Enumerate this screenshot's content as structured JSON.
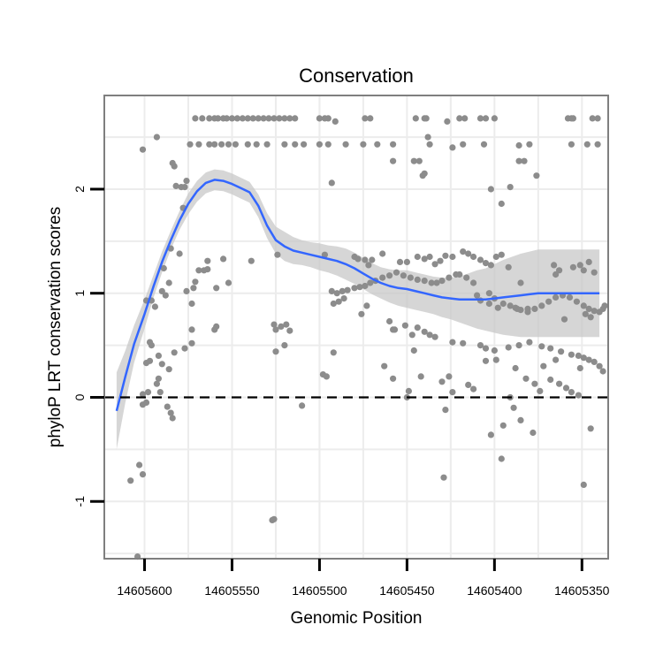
{
  "chart_data": {
    "type": "scatter",
    "title": "Conservation",
    "xlabel": "Genomic Position",
    "ylabel": "phyloP LRT conservation scores",
    "x_reversed": true,
    "xlim": [
      14605623,
      14605335
    ],
    "ylim": [
      -1.55,
      2.9
    ],
    "x_ticks": [
      14605600,
      14605550,
      14605500,
      14605450,
      14605400,
      14605350
    ],
    "x_tick_labels": [
      "14605600",
      "14605550",
      "14605500",
      "14605450",
      "14605400",
      "14605350"
    ],
    "y_ticks": [
      -1,
      0,
      1,
      2
    ],
    "y_tick_labels": [
      "-1",
      "0",
      "1",
      "2"
    ],
    "grid": true,
    "reference_line": {
      "y": 0,
      "style": "dashed"
    },
    "colors": {
      "points": "#8c8c8c",
      "smooth_line": "#3366ff",
      "confidence_band": "#c8c8c8",
      "panel_border": "#7f7f7f",
      "grid": "#ececec"
    },
    "points": [
      [
        14605571,
        2.68
      ],
      [
        14605567,
        2.68
      ],
      [
        14605563,
        2.68
      ],
      [
        14605560,
        2.68
      ],
      [
        14605558,
        2.68
      ],
      [
        14605555,
        2.68
      ],
      [
        14605553,
        2.68
      ],
      [
        14605550,
        2.68
      ],
      [
        14605547,
        2.68
      ],
      [
        14605544,
        2.68
      ],
      [
        14605541,
        2.68
      ],
      [
        14605538,
        2.68
      ],
      [
        14605535,
        2.68
      ],
      [
        14605532,
        2.68
      ],
      [
        14605529,
        2.68
      ],
      [
        14605526,
        2.68
      ],
      [
        14605523,
        2.68
      ],
      [
        14605520,
        2.68
      ],
      [
        14605517,
        2.68
      ],
      [
        14605514,
        2.68
      ],
      [
        14605500,
        2.68
      ],
      [
        14605497,
        2.68
      ],
      [
        14605495,
        2.68
      ],
      [
        14605491,
        2.65
      ],
      [
        14605474,
        2.68
      ],
      [
        14605471,
        2.68
      ],
      [
        14605445,
        2.68
      ],
      [
        14605440,
        2.68
      ],
      [
        14605439,
        2.68
      ],
      [
        14605427,
        2.65
      ],
      [
        14605420,
        2.68
      ],
      [
        14605417,
        2.68
      ],
      [
        14605408,
        2.68
      ],
      [
        14605405,
        2.68
      ],
      [
        14605400,
        2.68
      ],
      [
        14605358,
        2.68
      ],
      [
        14605356,
        2.68
      ],
      [
        14605355,
        2.68
      ],
      [
        14605344,
        2.68
      ],
      [
        14605341,
        2.68
      ],
      [
        14605574,
        2.43
      ],
      [
        14605569,
        2.43
      ],
      [
        14605563,
        2.43
      ],
      [
        14605560,
        2.43
      ],
      [
        14605556,
        2.43
      ],
      [
        14605552,
        2.43
      ],
      [
        14605548,
        2.43
      ],
      [
        14605541,
        2.43
      ],
      [
        14605536,
        2.43
      ],
      [
        14605530,
        2.43
      ],
      [
        14605520,
        2.43
      ],
      [
        14605514,
        2.43
      ],
      [
        14605509,
        2.43
      ],
      [
        14605500,
        2.43
      ],
      [
        14605495,
        2.43
      ],
      [
        14605485,
        2.43
      ],
      [
        14605475,
        2.43
      ],
      [
        14605467,
        2.43
      ],
      [
        14605458,
        2.43
      ],
      [
        14605437,
        2.43
      ],
      [
        14605418,
        2.43
      ],
      [
        14605406,
        2.43
      ],
      [
        14605380,
        2.43
      ],
      [
        14605356,
        2.43
      ],
      [
        14605347,
        2.43
      ],
      [
        14605341,
        2.43
      ],
      [
        14605424,
        2.4
      ],
      [
        14605386,
        2.42
      ],
      [
        14605593,
        2.5
      ],
      [
        14605601,
        2.38
      ],
      [
        14605438,
        2.5
      ],
      [
        14605584,
        2.25
      ],
      [
        14605583,
        2.22
      ],
      [
        14605458,
        2.27
      ],
      [
        14605446,
        2.27
      ],
      [
        14605443,
        2.27
      ],
      [
        14605386,
        2.27
      ],
      [
        14605383,
        2.27
      ],
      [
        14605440,
        2.15
      ],
      [
        14605441,
        2.13
      ],
      [
        14605391,
        2.02
      ],
      [
        14605376,
        2.13
      ],
      [
        14605582,
        2.03
      ],
      [
        14605579,
        2.02
      ],
      [
        14605577,
        2.02
      ],
      [
        14605576,
        2.08
      ],
      [
        14605493,
        2.06
      ],
      [
        14605402,
        2.0
      ],
      [
        14605578,
        1.82
      ],
      [
        14605396,
        1.86
      ],
      [
        14605585,
        1.43
      ],
      [
        14605589,
        1.24
      ],
      [
        14605580,
        1.38
      ],
      [
        14605569,
        1.22
      ],
      [
        14605566,
        1.22
      ],
      [
        14605564,
        1.23
      ],
      [
        14605564,
        1.31
      ],
      [
        14605559,
        1.05
      ],
      [
        14605555,
        1.33
      ],
      [
        14605539,
        1.31
      ],
      [
        14605590,
        1.02
      ],
      [
        14605586,
        1.1
      ],
      [
        14605596,
        0.93
      ],
      [
        14605594,
        0.87
      ],
      [
        14605599,
        0.93
      ],
      [
        14605588,
        0.98
      ],
      [
        14605576,
        1.02
      ],
      [
        14605572,
        1.05
      ],
      [
        14605571,
        1.11
      ],
      [
        14605573,
        0.9
      ],
      [
        14605552,
        1.1
      ],
      [
        14605524,
        1.37
      ],
      [
        14605497,
        1.37
      ],
      [
        14605480,
        1.35
      ],
      [
        14605478,
        1.33
      ],
      [
        14605474,
        1.32
      ],
      [
        14605472,
        1.27
      ],
      [
        14605470,
        1.32
      ],
      [
        14605464,
        1.38
      ],
      [
        14605454,
        1.3
      ],
      [
        14605450,
        1.3
      ],
      [
        14605444,
        1.35
      ],
      [
        14605440,
        1.33
      ],
      [
        14605437,
        1.35
      ],
      [
        14605434,
        1.28
      ],
      [
        14605431,
        1.31
      ],
      [
        14605428,
        1.36
      ],
      [
        14605424,
        1.35
      ],
      [
        14605418,
        1.4
      ],
      [
        14605415,
        1.38
      ],
      [
        14605412,
        1.35
      ],
      [
        14605408,
        1.32
      ],
      [
        14605405,
        1.29
      ],
      [
        14605402,
        1.27
      ],
      [
        14605399,
        1.35
      ],
      [
        14605396,
        1.37
      ],
      [
        14605392,
        1.25
      ],
      [
        14605385,
        1.1
      ],
      [
        14605366,
        1.27
      ],
      [
        14605365,
        1.18
      ],
      [
        14605363,
        1.22
      ],
      [
        14605355,
        1.25
      ],
      [
        14605351,
        1.27
      ],
      [
        14605349,
        1.22
      ],
      [
        14605346,
        1.3
      ],
      [
        14605343,
        1.2
      ],
      [
        14605493,
        1.02
      ],
      [
        14605490,
        1.0
      ],
      [
        14605487,
        1.02
      ],
      [
        14605484,
        1.03
      ],
      [
        14605480,
        1.05
      ],
      [
        14605477,
        1.06
      ],
      [
        14605474,
        1.07
      ],
      [
        14605471,
        1.1
      ],
      [
        14605468,
        1.12
      ],
      [
        14605464,
        1.15
      ],
      [
        14605460,
        1.17
      ],
      [
        14605456,
        1.2
      ],
      [
        14605452,
        1.17
      ],
      [
        14605448,
        1.15
      ],
      [
        14605444,
        1.13
      ],
      [
        14605440,
        1.12
      ],
      [
        14605436,
        1.1
      ],
      [
        14605433,
        1.1
      ],
      [
        14605430,
        1.12
      ],
      [
        14605426,
        1.15
      ],
      [
        14605422,
        1.18
      ],
      [
        14605420,
        1.18
      ],
      [
        14605416,
        1.15
      ],
      [
        14605412,
        1.1
      ],
      [
        14605403,
        1.0
      ],
      [
        14605400,
        0.95
      ],
      [
        14605395,
        0.9
      ],
      [
        14605391,
        0.88
      ],
      [
        14605388,
        0.86
      ],
      [
        14605385,
        0.84
      ],
      [
        14605381,
        0.82
      ],
      [
        14605377,
        0.85
      ],
      [
        14605373,
        0.88
      ],
      [
        14605369,
        0.92
      ],
      [
        14605365,
        0.96
      ],
      [
        14605361,
        0.98
      ],
      [
        14605357,
        0.96
      ],
      [
        14605353,
        0.92
      ],
      [
        14605349,
        0.88
      ],
      [
        14605346,
        0.85
      ],
      [
        14605343,
        0.83
      ],
      [
        14605340,
        0.82
      ],
      [
        14605338,
        0.85
      ],
      [
        14605337,
        0.88
      ],
      [
        14605345,
        0.77
      ],
      [
        14605348,
        0.8
      ],
      [
        14605360,
        0.75
      ],
      [
        14605381,
        0.85
      ],
      [
        14605387,
        0.85
      ],
      [
        14605398,
        0.86
      ],
      [
        14605403,
        0.9
      ],
      [
        14605408,
        0.93
      ],
      [
        14605410,
        0.98
      ],
      [
        14605492,
        0.9
      ],
      [
        14605489,
        0.92
      ],
      [
        14605486,
        0.95
      ],
      [
        14605473,
        0.88
      ],
      [
        14605476,
        0.8
      ],
      [
        14605460,
        0.73
      ],
      [
        14605457,
        0.65
      ],
      [
        14605451,
        0.69
      ],
      [
        14605447,
        0.6
      ],
      [
        14605444,
        0.67
      ],
      [
        14605440,
        0.63
      ],
      [
        14605437,
        0.6
      ],
      [
        14605434,
        0.58
      ],
      [
        14605424,
        0.53
      ],
      [
        14605418,
        0.52
      ],
      [
        14605408,
        0.5
      ],
      [
        14605405,
        0.47
      ],
      [
        14605400,
        0.45
      ],
      [
        14605392,
        0.48
      ],
      [
        14605386,
        0.5
      ],
      [
        14605380,
        0.53
      ],
      [
        14605373,
        0.49
      ],
      [
        14605368,
        0.47
      ],
      [
        14605362,
        0.44
      ],
      [
        14605356,
        0.41
      ],
      [
        14605352,
        0.4
      ],
      [
        14605349,
        0.38
      ],
      [
        14605346,
        0.36
      ],
      [
        14605343,
        0.34
      ],
      [
        14605340,
        0.3
      ],
      [
        14605338,
        0.25
      ],
      [
        14605365,
        0.36
      ],
      [
        14605351,
        0.28
      ],
      [
        14605372,
        0.3
      ],
      [
        14605399,
        0.36
      ],
      [
        14605405,
        0.35
      ],
      [
        14605388,
        0.28
      ],
      [
        14605382,
        0.18
      ],
      [
        14605377,
        0.13
      ],
      [
        14605374,
        0.06
      ],
      [
        14605391,
        0.0
      ],
      [
        14605352,
        0.02
      ],
      [
        14605356,
        0.05
      ],
      [
        14605359,
        0.09
      ],
      [
        14605363,
        0.13
      ],
      [
        14605368,
        0.17
      ],
      [
        14605597,
        0.53
      ],
      [
        14605596,
        0.5
      ],
      [
        14605592,
        0.4
      ],
      [
        14605590,
        0.32
      ],
      [
        14605586,
        0.27
      ],
      [
        14605583,
        0.43
      ],
      [
        14605577,
        0.47
      ],
      [
        14605573,
        0.52
      ],
      [
        14605560,
        0.65
      ],
      [
        14605559,
        0.68
      ],
      [
        14605573,
        0.65
      ],
      [
        14605597,
        0.35
      ],
      [
        14605599,
        0.33
      ],
      [
        14605592,
        0.18
      ],
      [
        14605593,
        0.13
      ],
      [
        14605591,
        0.05
      ],
      [
        14605598,
        0.05
      ],
      [
        14605601,
        0.03
      ],
      [
        14605601,
        -0.07
      ],
      [
        14605584,
        -0.2
      ],
      [
        14605585,
        -0.15
      ],
      [
        14605587,
        -0.09
      ],
      [
        14605599,
        -0.05
      ],
      [
        14605526,
        0.7
      ],
      [
        14605525,
        0.65
      ],
      [
        14605522,
        0.68
      ],
      [
        14605519,
        0.7
      ],
      [
        14605517,
        0.64
      ],
      [
        14605525,
        0.44
      ],
      [
        14605498,
        0.22
      ],
      [
        14605496,
        0.2
      ],
      [
        14605492,
        0.43
      ],
      [
        14605458,
        0.65
      ],
      [
        14605446,
        0.45
      ],
      [
        14605442,
        0.2
      ],
      [
        14605430,
        0.15
      ],
      [
        14605426,
        0.2
      ],
      [
        14605424,
        0.05
      ],
      [
        14605415,
        0.12
      ],
      [
        14605412,
        0.08
      ],
      [
        14605450,
        0.0
      ],
      [
        14605428,
        -0.12
      ],
      [
        14605463,
        0.3
      ],
      [
        14605458,
        0.18
      ],
      [
        14605449,
        0.06
      ],
      [
        14605510,
        -0.08
      ],
      [
        14605520,
        0.5
      ],
      [
        14605389,
        -0.1
      ],
      [
        14605385,
        -0.22
      ],
      [
        14605378,
        -0.34
      ],
      [
        14605395,
        -0.27
      ],
      [
        14605402,
        -0.36
      ],
      [
        14605396,
        -0.59
      ],
      [
        14605429,
        -0.77
      ],
      [
        14605345,
        -0.3
      ],
      [
        14605349,
        -0.84
      ],
      [
        14605603,
        -0.65
      ],
      [
        14605601,
        -0.74
      ],
      [
        14605608,
        -0.8
      ],
      [
        14605527,
        -1.18
      ],
      [
        14605526,
        -1.17
      ],
      [
        14605604,
        -1.53
      ]
    ],
    "smooth": {
      "x": [
        14605616,
        14605611,
        14605606,
        14605600,
        14605595,
        14605590,
        14605585,
        14605580,
        14605575,
        14605570,
        14605565,
        14605560,
        14605555,
        14605550,
        14605545,
        14605540,
        14605535,
        14605530,
        14605525,
        14605520,
        14605515,
        14605510,
        14605505,
        14605500,
        14605495,
        14605490,
        14605485,
        14605480,
        14605475,
        14605470,
        14605465,
        14605460,
        14605455,
        14605450,
        14605445,
        14605440,
        14605435,
        14605430,
        14605425,
        14605420,
        14605415,
        14605410,
        14605405,
        14605400,
        14605395,
        14605390,
        14605385,
        14605380,
        14605375,
        14605370,
        14605365,
        14605360,
        14605355,
        14605350,
        14605345,
        14605340
      ],
      "y": [
        -0.13,
        0.2,
        0.51,
        0.8,
        1.06,
        1.3,
        1.51,
        1.7,
        1.86,
        1.98,
        2.06,
        2.09,
        2.08,
        2.05,
        2.01,
        1.97,
        1.84,
        1.65,
        1.51,
        1.45,
        1.41,
        1.39,
        1.37,
        1.35,
        1.33,
        1.31,
        1.28,
        1.24,
        1.19,
        1.14,
        1.1,
        1.07,
        1.05,
        1.04,
        1.02,
        1.0,
        0.98,
        0.96,
        0.95,
        0.94,
        0.94,
        0.94,
        0.94,
        0.95,
        0.96,
        0.97,
        0.98,
        0.99,
        1.0,
        1.0,
        1.0,
        1.0,
        1.0,
        1.0,
        1.0,
        1.0
      ],
      "lower": [
        -0.5,
        -0.05,
        0.33,
        0.66,
        0.95,
        1.2,
        1.42,
        1.61,
        1.76,
        1.88,
        1.96,
        1.99,
        1.98,
        1.95,
        1.91,
        1.87,
        1.73,
        1.53,
        1.38,
        1.31,
        1.28,
        1.27,
        1.25,
        1.22,
        1.2,
        1.17,
        1.13,
        1.09,
        1.04,
        0.99,
        0.95,
        0.91,
        0.88,
        0.86,
        0.84,
        0.82,
        0.8,
        0.77,
        0.75,
        0.72,
        0.69,
        0.66,
        0.64,
        0.62,
        0.6,
        0.59,
        0.58,
        0.58,
        0.58,
        0.58,
        0.58,
        0.58,
        0.58,
        0.58,
        0.58,
        0.58
      ],
      "upper": [
        0.24,
        0.45,
        0.69,
        0.94,
        1.17,
        1.4,
        1.6,
        1.79,
        1.96,
        2.08,
        2.16,
        2.19,
        2.18,
        2.15,
        2.11,
        2.07,
        1.95,
        1.77,
        1.64,
        1.59,
        1.54,
        1.51,
        1.49,
        1.48,
        1.46,
        1.45,
        1.43,
        1.39,
        1.34,
        1.29,
        1.25,
        1.23,
        1.22,
        1.22,
        1.2,
        1.18,
        1.16,
        1.15,
        1.15,
        1.16,
        1.19,
        1.22,
        1.24,
        1.28,
        1.32,
        1.35,
        1.38,
        1.4,
        1.42,
        1.42,
        1.42,
        1.42,
        1.42,
        1.42,
        1.42,
        1.42
      ]
    }
  }
}
